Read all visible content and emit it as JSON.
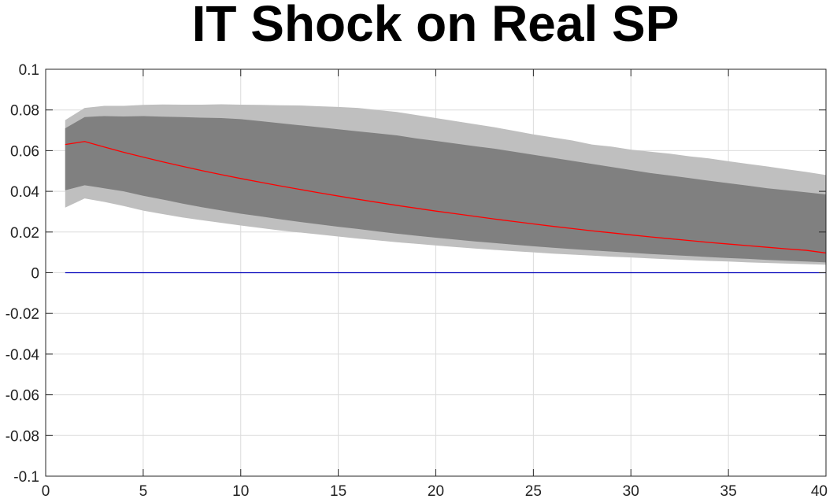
{
  "chart_data": {
    "type": "area",
    "title": "IT Shock on Real SP",
    "xlabel": "",
    "ylabel": "",
    "xlim": [
      0,
      40
    ],
    "ylim": [
      -0.1,
      0.1
    ],
    "xticks": [
      0,
      5,
      10,
      15,
      20,
      25,
      30,
      35,
      40
    ],
    "xtick_labels": [
      "0",
      "5",
      "10",
      "15",
      "20",
      "25",
      "30",
      "35",
      "40"
    ],
    "yticks": [
      -0.1,
      -0.08,
      -0.06,
      -0.04,
      -0.02,
      0,
      0.02,
      0.04,
      0.06,
      0.08,
      0.1
    ],
    "ytick_labels": [
      "-0.1",
      "-0.08",
      "-0.06",
      "-0.04",
      "-0.02",
      "0",
      "0.02",
      "0.04",
      "0.06",
      "0.08",
      "0.1"
    ],
    "grid": true,
    "colors": {
      "outer_band": "#bfbfbf",
      "inner_band": "#808080",
      "median_line": "#ff0000",
      "zero_line": "#0000bb"
    },
    "x": [
      1,
      2,
      3,
      4,
      5,
      6,
      7,
      8,
      9,
      10,
      11,
      12,
      13,
      14,
      15,
      16,
      17,
      18,
      19,
      20,
      21,
      22,
      23,
      24,
      25,
      26,
      27,
      28,
      29,
      30,
      31,
      32,
      33,
      34,
      35,
      36,
      37,
      38,
      39,
      40
    ],
    "outer_upper": [
      0.075,
      0.081,
      0.082,
      0.082,
      0.0825,
      0.0827,
      0.0826,
      0.0826,
      0.0828,
      0.0826,
      0.0825,
      0.0823,
      0.0822,
      0.0818,
      0.0815,
      0.081,
      0.08,
      0.079,
      0.0775,
      0.076,
      0.0745,
      0.073,
      0.0715,
      0.0698,
      0.068,
      0.0665,
      0.065,
      0.063,
      0.062,
      0.0605,
      0.0595,
      0.0585,
      0.0572,
      0.0562,
      0.0548,
      0.0535,
      0.0522,
      0.0508,
      0.0495,
      0.048
    ],
    "inner_upper": [
      0.071,
      0.0765,
      0.077,
      0.0768,
      0.077,
      0.0767,
      0.0765,
      0.0762,
      0.076,
      0.0755,
      0.0745,
      0.0735,
      0.0725,
      0.0715,
      0.0705,
      0.0695,
      0.0685,
      0.0675,
      0.066,
      0.0648,
      0.0635,
      0.0622,
      0.061,
      0.0595,
      0.058,
      0.0565,
      0.055,
      0.0535,
      0.052,
      0.0505,
      0.049,
      0.0478,
      0.0465,
      0.0452,
      0.044,
      0.0428,
      0.0415,
      0.0405,
      0.0395,
      0.0385
    ],
    "median": [
      0.063,
      0.0645,
      0.0618,
      0.0592,
      0.0568,
      0.0545,
      0.0523,
      0.0502,
      0.0482,
      0.0463,
      0.0445,
      0.0427,
      0.041,
      0.0393,
      0.0377,
      0.0361,
      0.0346,
      0.0331,
      0.0317,
      0.0303,
      0.029,
      0.0277,
      0.0264,
      0.0252,
      0.024,
      0.0228,
      0.0217,
      0.0206,
      0.0196,
      0.0186,
      0.0176,
      0.0167,
      0.0158,
      0.0149,
      0.0141,
      0.0133,
      0.0125,
      0.0117,
      0.011,
      0.0097
    ],
    "inner_lower": [
      0.0405,
      0.043,
      0.0415,
      0.04,
      0.0378,
      0.036,
      0.034,
      0.0322,
      0.0306,
      0.029,
      0.0277,
      0.0263,
      0.025,
      0.0238,
      0.0226,
      0.0215,
      0.0203,
      0.0192,
      0.0182,
      0.0172,
      0.0163,
      0.0154,
      0.0146,
      0.0138,
      0.013,
      0.0123,
      0.0116,
      0.011,
      0.0104,
      0.0098,
      0.0092,
      0.0087,
      0.0082,
      0.0077,
      0.0072,
      0.0068,
      0.0063,
      0.0059,
      0.0055,
      0.0051
    ],
    "outer_lower": [
      0.032,
      0.0365,
      0.0348,
      0.0328,
      0.0305,
      0.0288,
      0.0272,
      0.0258,
      0.0245,
      0.0232,
      0.022,
      0.0208,
      0.0198,
      0.0188,
      0.0178,
      0.0168,
      0.0159,
      0.015,
      0.0142,
      0.0134,
      0.0126,
      0.0119,
      0.0112,
      0.0106,
      0.01,
      0.0094,
      0.0089,
      0.0084,
      0.0079,
      0.0075,
      0.007,
      0.0066,
      0.0062,
      0.0058,
      0.0055,
      0.0051,
      0.0048,
      0.0045,
      0.0042,
      0.0039
    ],
    "zero_line": {
      "x": [
        1,
        40
      ],
      "y": [
        0,
        0
      ]
    }
  }
}
